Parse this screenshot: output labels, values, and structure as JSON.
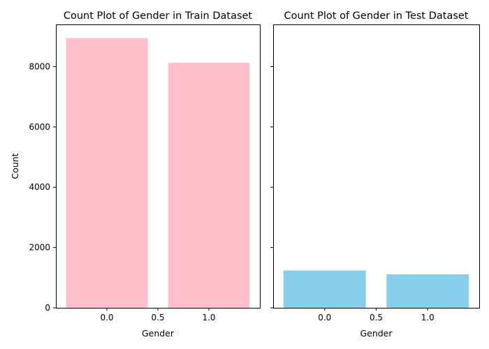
{
  "chart_data": [
    {
      "type": "bar",
      "title": "Count Plot of Gender in Train Dataset",
      "xlabel": "Gender",
      "ylabel": "Count",
      "x": [
        0.0,
        1.0
      ],
      "values": [
        8950,
        8130
      ],
      "bar_width": 0.8,
      "xlim": [
        -0.5,
        1.5
      ],
      "ylim": [
        0,
        9400
      ],
      "xticks": [
        0.0,
        0.5,
        1.0
      ],
      "xtick_labels": [
        "0.0",
        "0.5",
        "1.0"
      ],
      "yticks": [
        0,
        2000,
        4000,
        6000,
        8000
      ],
      "ytick_labels": [
        "0",
        "2000",
        "4000",
        "6000",
        "8000"
      ],
      "color": "#ffc0cb",
      "grid": false
    },
    {
      "type": "bar",
      "title": "Count Plot of Gender in Test Dataset",
      "xlabel": "Gender",
      "ylabel": "",
      "x": [
        0.0,
        1.0
      ],
      "values": [
        1240,
        1110
      ],
      "bar_width": 0.8,
      "xlim": [
        -0.5,
        1.5
      ],
      "ylim": [
        0,
        9400
      ],
      "xticks": [
        0.0,
        0.5,
        1.0
      ],
      "xtick_labels": [
        "0.0",
        "0.5",
        "1.0"
      ],
      "yticks": [
        0,
        2000,
        4000,
        6000,
        8000
      ],
      "ytick_labels": [
        "",
        "",
        "",
        "",
        ""
      ],
      "color": "#87ceeb",
      "grid": false,
      "sharey": true
    }
  ]
}
